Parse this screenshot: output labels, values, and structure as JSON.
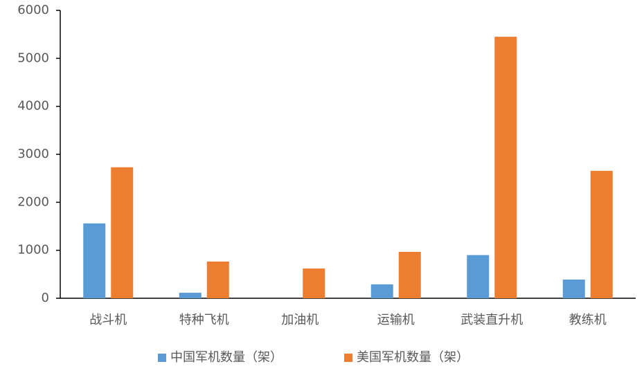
{
  "chart_data": {
    "type": "bar",
    "categories": [
      "战斗机",
      "特种飞机",
      "加油机",
      "运输机",
      "武装直升机",
      "教练机"
    ],
    "series": [
      {
        "name": "中国军机数量（架）",
        "color": "#5b9bd5",
        "values": [
          1560,
          115,
          0,
          290,
          900,
          390
        ]
      },
      {
        "name": "美国军机数量（架）",
        "color": "#ed7d31",
        "values": [
          2730,
          765,
          620,
          967,
          5450,
          2655
        ]
      }
    ],
    "ylim": [
      0,
      6000
    ],
    "yticks": [
      0,
      1000,
      2000,
      3000,
      4000,
      5000,
      6000
    ],
    "grid": false,
    "legend": "bottom"
  }
}
